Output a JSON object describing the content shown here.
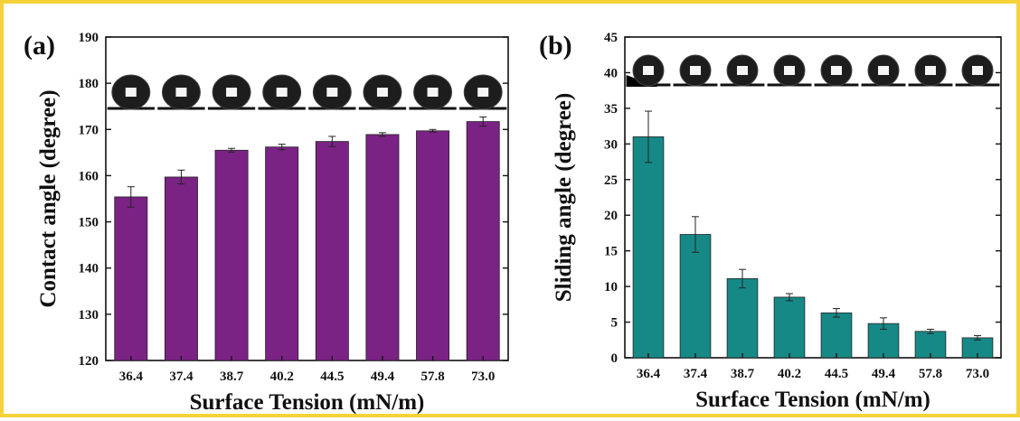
{
  "chart_data": [
    {
      "type": "bar",
      "panel_label": "(a)",
      "categories": [
        "36.4",
        "37.4",
        "38.7",
        "40.2",
        "44.5",
        "49.4",
        "57.8",
        "73.0"
      ],
      "values": [
        155.4,
        159.7,
        165.5,
        166.2,
        167.4,
        168.9,
        169.7,
        171.7
      ],
      "errors": [
        2.2,
        1.5,
        0.4,
        0.6,
        1.1,
        0.4,
        0.3,
        1.0
      ],
      "color": "#7b2385",
      "xlabel": "Surface Tension (mN/m)",
      "ylabel": "Contact angle (degree)",
      "ylim": [
        120,
        190
      ],
      "yticks": [
        120,
        130,
        140,
        150,
        160,
        170,
        180,
        190
      ],
      "inset": "droplet photographs above each bar"
    },
    {
      "type": "bar",
      "panel_label": "(b)",
      "categories": [
        "36.4",
        "37.4",
        "38.7",
        "40.2",
        "44.5",
        "49.4",
        "57.8",
        "73.0"
      ],
      "values": [
        31.0,
        17.3,
        11.1,
        8.5,
        6.3,
        4.8,
        3.7,
        2.8
      ],
      "errors": [
        3.6,
        2.5,
        1.3,
        0.5,
        0.6,
        0.8,
        0.3,
        0.3
      ],
      "color": "#168987",
      "xlabel": "Surface Tension (mN/m)",
      "ylabel": "Sliding angle (degree)",
      "ylim": [
        0,
        45
      ],
      "yticks": [
        0,
        5,
        10,
        15,
        20,
        25,
        30,
        35,
        40,
        45
      ],
      "inset": "sliding droplet photographs above each bar"
    }
  ]
}
